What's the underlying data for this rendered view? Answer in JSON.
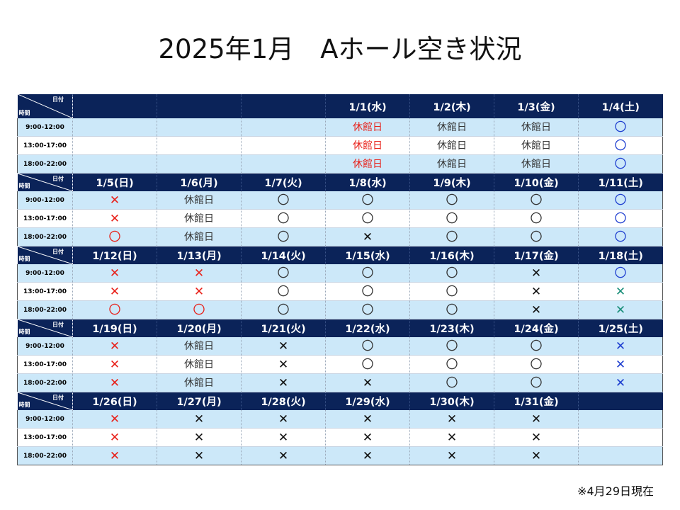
{
  "title": "2025年1月　Aホール空き状況",
  "footnote": "※4月29日現在",
  "corner": {
    "date_label": "日付",
    "time_label": "時間"
  },
  "time_slots": [
    "9:00-12:00",
    "13:00-17:00",
    "18:00-22:00"
  ],
  "status_symbols": {
    "open": "〇",
    "booked": "✕",
    "closed": "休館日",
    "empty": ""
  },
  "colors": {
    "header_bg": "#0b2359",
    "row_band": "#cce8f9",
    "red": "#e8211a",
    "blue": "#1f3fd0",
    "teal": "#1a8f7a"
  },
  "weeks": [
    {
      "days": [
        "",
        "",
        "",
        "1/1(水)",
        "1/2(木)",
        "1/3(金)",
        "1/4(土)"
      ],
      "slots": [
        [
          [
            "empty",
            ""
          ],
          [
            "empty",
            ""
          ],
          [
            "empty",
            ""
          ],
          [
            "closed",
            "red"
          ],
          [
            "closed",
            ""
          ],
          [
            "closed",
            ""
          ],
          [
            "open",
            "blue"
          ]
        ],
        [
          [
            "empty",
            ""
          ],
          [
            "empty",
            ""
          ],
          [
            "empty",
            ""
          ],
          [
            "closed",
            "red"
          ],
          [
            "closed",
            ""
          ],
          [
            "closed",
            ""
          ],
          [
            "open",
            "blue"
          ]
        ],
        [
          [
            "empty",
            ""
          ],
          [
            "empty",
            ""
          ],
          [
            "empty",
            ""
          ],
          [
            "closed",
            "red"
          ],
          [
            "closed",
            ""
          ],
          [
            "closed",
            ""
          ],
          [
            "open",
            "blue"
          ]
        ]
      ]
    },
    {
      "days": [
        "1/5(日)",
        "1/6(月)",
        "1/7(火)",
        "1/8(水)",
        "1/9(木)",
        "1/10(金)",
        "1/11(土)"
      ],
      "slots": [
        [
          [
            "booked",
            "red"
          ],
          [
            "closed",
            ""
          ],
          [
            "open",
            ""
          ],
          [
            "open",
            ""
          ],
          [
            "open",
            ""
          ],
          [
            "open",
            ""
          ],
          [
            "open",
            "blue"
          ]
        ],
        [
          [
            "booked",
            "red"
          ],
          [
            "closed",
            ""
          ],
          [
            "open",
            ""
          ],
          [
            "open",
            ""
          ],
          [
            "open",
            ""
          ],
          [
            "open",
            ""
          ],
          [
            "open",
            "blue"
          ]
        ],
        [
          [
            "open",
            "red"
          ],
          [
            "closed",
            ""
          ],
          [
            "open",
            ""
          ],
          [
            "booked",
            ""
          ],
          [
            "open",
            ""
          ],
          [
            "open",
            ""
          ],
          [
            "open",
            "blue"
          ]
        ]
      ]
    },
    {
      "days": [
        "1/12(日)",
        "1/13(月)",
        "1/14(火)",
        "1/15(水)",
        "1/16(木)",
        "1/17(金)",
        "1/18(土)"
      ],
      "slots": [
        [
          [
            "booked",
            "red"
          ],
          [
            "booked",
            "red"
          ],
          [
            "open",
            ""
          ],
          [
            "open",
            ""
          ],
          [
            "open",
            ""
          ],
          [
            "booked",
            ""
          ],
          [
            "open",
            "blue"
          ]
        ],
        [
          [
            "booked",
            "red"
          ],
          [
            "booked",
            "red"
          ],
          [
            "open",
            ""
          ],
          [
            "open",
            ""
          ],
          [
            "open",
            ""
          ],
          [
            "booked",
            ""
          ],
          [
            "booked",
            "teal"
          ]
        ],
        [
          [
            "open",
            "red"
          ],
          [
            "open",
            "red"
          ],
          [
            "open",
            ""
          ],
          [
            "open",
            ""
          ],
          [
            "open",
            ""
          ],
          [
            "booked",
            ""
          ],
          [
            "booked",
            "teal"
          ]
        ]
      ]
    },
    {
      "days": [
        "1/19(日)",
        "1/20(月)",
        "1/21(火)",
        "1/22(水)",
        "1/23(木)",
        "1/24(金)",
        "1/25(土)"
      ],
      "slots": [
        [
          [
            "booked",
            "red"
          ],
          [
            "closed",
            ""
          ],
          [
            "booked",
            ""
          ],
          [
            "open",
            ""
          ],
          [
            "open",
            ""
          ],
          [
            "open",
            ""
          ],
          [
            "booked",
            "blue"
          ]
        ],
        [
          [
            "booked",
            "red"
          ],
          [
            "closed",
            ""
          ],
          [
            "booked",
            ""
          ],
          [
            "open",
            ""
          ],
          [
            "open",
            ""
          ],
          [
            "open",
            ""
          ],
          [
            "booked",
            "blue"
          ]
        ],
        [
          [
            "booked",
            "red"
          ],
          [
            "closed",
            ""
          ],
          [
            "booked",
            ""
          ],
          [
            "booked",
            ""
          ],
          [
            "open",
            ""
          ],
          [
            "open",
            ""
          ],
          [
            "booked",
            "blue"
          ]
        ]
      ]
    },
    {
      "days": [
        "1/26(日)",
        "1/27(月)",
        "1/28(火)",
        "1/29(水)",
        "1/30(木)",
        "1/31(金)",
        ""
      ],
      "slots": [
        [
          [
            "booked",
            "red"
          ],
          [
            "booked",
            ""
          ],
          [
            "booked",
            ""
          ],
          [
            "booked",
            ""
          ],
          [
            "booked",
            ""
          ],
          [
            "booked",
            ""
          ],
          [
            "empty",
            ""
          ]
        ],
        [
          [
            "booked",
            "red"
          ],
          [
            "booked",
            ""
          ],
          [
            "booked",
            ""
          ],
          [
            "booked",
            ""
          ],
          [
            "booked",
            ""
          ],
          [
            "booked",
            ""
          ],
          [
            "empty",
            ""
          ]
        ],
        [
          [
            "booked",
            "red"
          ],
          [
            "booked",
            ""
          ],
          [
            "booked",
            ""
          ],
          [
            "booked",
            ""
          ],
          [
            "booked",
            ""
          ],
          [
            "booked",
            ""
          ],
          [
            "empty",
            ""
          ]
        ]
      ]
    }
  ]
}
